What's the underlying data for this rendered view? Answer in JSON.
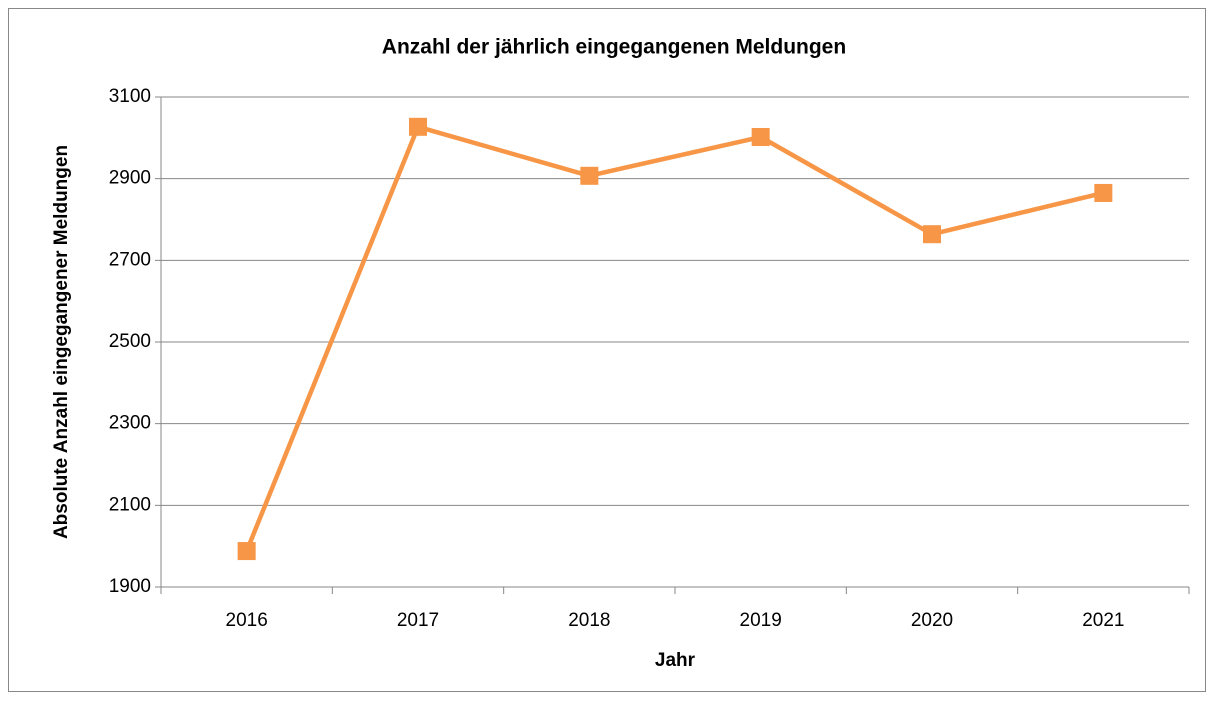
{
  "chart_data": {
    "type": "line",
    "title": "Anzahl der jährlich eingegangenen Meldungen",
    "x_label": "Jahr",
    "y_label": "Absolute Anzahl eingegangener Meldungen",
    "categories": [
      "2016",
      "2017",
      "2018",
      "2019",
      "2020",
      "2021"
    ],
    "values": [
      1988,
      3027,
      2907,
      3002,
      2764,
      2865
    ],
    "color": "#f79646",
    "ylim": [
      1900,
      3100
    ],
    "yticks": [
      1900,
      2100,
      2300,
      2500,
      2700,
      2900,
      3100
    ],
    "grid": true
  }
}
